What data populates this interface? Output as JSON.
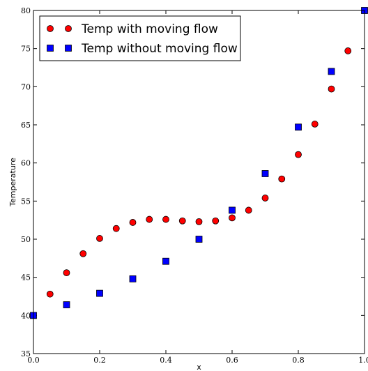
{
  "chart_data": {
    "type": "scatter",
    "title": "",
    "xlabel": "x",
    "ylabel": "Temperature",
    "xlim": [
      0.0,
      1.0
    ],
    "ylim": [
      35,
      80
    ],
    "x_ticks": [
      0.0,
      0.2,
      0.4,
      0.6,
      0.8,
      1.0
    ],
    "x_tick_labels": [
      "0.0",
      "0.2",
      "0.4",
      "0.6",
      "0.8",
      "1.0"
    ],
    "y_ticks": [
      35,
      40,
      45,
      50,
      55,
      60,
      65,
      70,
      75,
      80
    ],
    "y_tick_labels": [
      "35",
      "40",
      "45",
      "50",
      "55",
      "60",
      "65",
      "70",
      "75",
      "80"
    ],
    "grid": false,
    "legend_position": "top-left",
    "series": [
      {
        "name": "Temp with moving flow",
        "marker": "circle",
        "color": "#ff0000",
        "x": [
          0.05,
          0.1,
          0.15,
          0.2,
          0.25,
          0.3,
          0.35,
          0.4,
          0.45,
          0.5,
          0.55,
          0.6,
          0.65,
          0.7,
          0.75,
          0.8,
          0.85,
          0.9,
          0.95
        ],
        "y": [
          42.8,
          45.6,
          48.1,
          50.1,
          51.4,
          52.2,
          52.6,
          52.6,
          52.4,
          52.3,
          52.4,
          52.8,
          53.8,
          55.4,
          57.9,
          61.1,
          65.1,
          69.7,
          74.7
        ]
      },
      {
        "name": "Temp without moving flow",
        "marker": "square",
        "color": "#0000ff",
        "x": [
          0.0,
          0.1,
          0.2,
          0.3,
          0.4,
          0.5,
          0.6,
          0.7,
          0.8,
          0.9,
          1.0
        ],
        "y": [
          40.0,
          41.4,
          42.9,
          44.8,
          47.1,
          50.0,
          53.8,
          58.6,
          64.7,
          72.0,
          80.0
        ]
      }
    ]
  }
}
